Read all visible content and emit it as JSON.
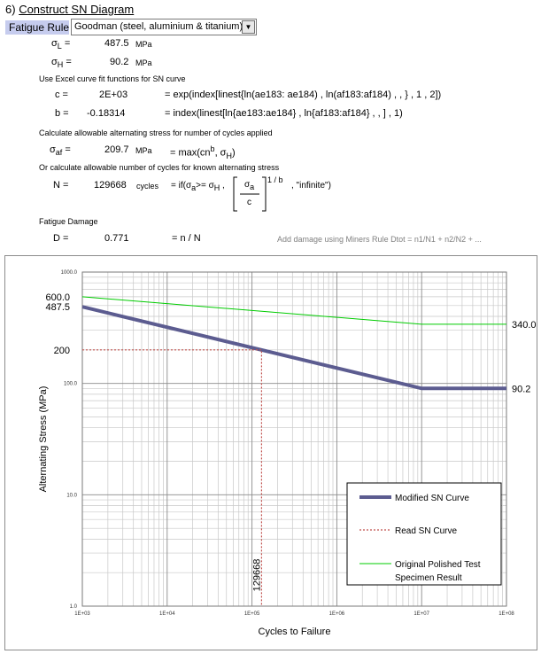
{
  "header": {
    "section_number": "6)",
    "title": "Construct SN Diagram",
    "fatigue_rule_label": "Fatigue Rule",
    "fatigue_rule_value": "Goodman (steel, aluminium & titanium)"
  },
  "stresses": {
    "sigma_l": {
      "symbol": "σ",
      "sub": "L",
      "eq": "=",
      "value": "487.5",
      "unit": "MPa"
    },
    "sigma_h": {
      "symbol": "σ",
      "sub": "H",
      "eq": "=",
      "value": "90.2",
      "unit": "MPa"
    }
  },
  "curve_fit": {
    "heading": "Use Excel curve fit functions for SN curve",
    "c": {
      "label": "c =",
      "value": "2E+03",
      "formula": "= exp(index[linest{ln(ae183: ae184) , ln(af183:af184) , , } , 1 , 2])"
    },
    "b": {
      "label": "b =",
      "value": "-0.18314",
      "formula": "= index(linest[ln{ae183:ae184} , ln{af183:af184} , , ] , 1)"
    }
  },
  "allowable_stress": {
    "heading": "Calculate allowable alternating stress for number of cycles applied",
    "label_sym": "σ",
    "label_sub": "af",
    "label_eq": "=",
    "value": "209.7",
    "unit": "MPa",
    "formula_a": "= max(cn",
    "formula_sup": "b",
    "formula_b": ", σ",
    "formula_sub": "H",
    "formula_c": ")"
  },
  "allowable_cycles": {
    "heading": "Or calculate allowable number of cycles for known alternating stress",
    "label": "N =",
    "value": "129668",
    "unit": "cycles",
    "formula_a": "= if(σ",
    "formula_sub_a": "a",
    "formula_b": ">= σ",
    "formula_sub_h": "H",
    "formula_c": " ,",
    "frac_num_sym": "σ",
    "frac_num_sub": "a",
    "frac_den": "c",
    "exp": "1 / b",
    "formula_tail": ", \"infinite\")"
  },
  "damage": {
    "heading": "Fatigue Damage",
    "label": "D =",
    "value": "0.771",
    "formula": "= n / N",
    "note": "Add damage using Miners Rule Dtot = n1/N1 + n2/N2 + ..."
  },
  "chart_data": {
    "type": "line",
    "x_scale": "log",
    "y_scale": "log",
    "xlim": [
      1000,
      100000000
    ],
    "ylim": [
      1,
      1000
    ],
    "xlabel": "Cycles to Failure",
    "ylabel": "Alternating Stress (MPa)",
    "x_ticks": [
      1000,
      10000,
      100000,
      1000000,
      10000000,
      100000000
    ],
    "x_tick_labels": [
      "1E+03",
      "1E+04",
      "1E+05",
      "1E+06",
      "1E+07",
      "1E+08"
    ],
    "y_ticks": [
      1,
      10,
      100,
      1000
    ],
    "y_tick_labels": [
      "1.0",
      "10.0",
      "100.0",
      "1000.0"
    ],
    "grid": true,
    "legend_position": "bottom-right",
    "series": [
      {
        "name": "Modified SN Curve",
        "color": "#5c5c90",
        "style": "solid-thick",
        "x": [
          1000,
          10000000,
          100000000
        ],
        "y": [
          487.5,
          90.2,
          90.2
        ]
      },
      {
        "name": "Read SN Curve",
        "color": "#c0504d",
        "style": "dotted",
        "x": [
          1000,
          129668,
          129668
        ],
        "y": [
          200,
          200,
          1
        ]
      },
      {
        "name": "Original Polished Test Specimen Result",
        "color": "#00cc00",
        "style": "solid-thin",
        "x": [
          1000,
          10000000,
          100000000
        ],
        "y": [
          600,
          340,
          340
        ]
      }
    ],
    "annotations": {
      "left_labels": [
        {
          "text": "600.0",
          "y": 600
        },
        {
          "text": "487.5",
          "y": 487.5
        },
        {
          "text": "200",
          "y": 200
        }
      ],
      "right_labels": [
        {
          "text": "340.0",
          "y": 340
        },
        {
          "text": "90.2",
          "y": 90.2
        }
      ],
      "vertical_label": {
        "text": "129668",
        "x": 129668
      }
    }
  }
}
